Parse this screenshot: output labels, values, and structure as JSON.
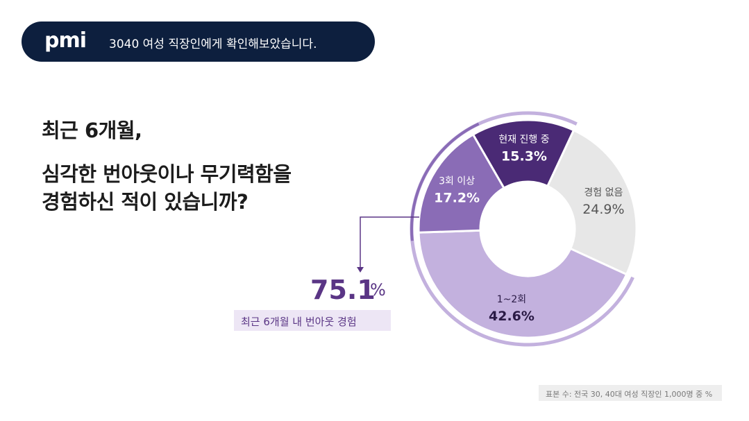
{
  "header": {
    "logo_text": "pmi",
    "subtitle": "3040 여성 직장인에게 확인해보았습니다."
  },
  "question": {
    "line1": "최근 6개월,",
    "line2": "심각한 번아웃이나 무기력함을",
    "line3": "경험하신 적이 있습니까?"
  },
  "summary": {
    "value": "75.1",
    "unit": "%",
    "caption": "최근 6개월 내 번아웃 경험"
  },
  "footnote": "표본 수: 전국 30, 40대 여성 직장인 1,000명 중 %",
  "colors": {
    "header_bg": "#0d1f3e",
    "accent": "#5a3585",
    "caption_bg": "#ede6f5"
  },
  "chart_data": {
    "type": "pie",
    "variant": "donut",
    "unit": "%",
    "slices": [
      {
        "label": "현재 진행 중",
        "value": 15.3,
        "color": "#4a2a75",
        "text_color": "#ffffff"
      },
      {
        "label": "경험 없음",
        "value": 24.9,
        "color": "#e7e7e7",
        "text_color": "#555555"
      },
      {
        "label": "1~2회",
        "value": 42.6,
        "color": "#c3b1de",
        "text_color": "#2a1a45"
      },
      {
        "label": "3회 이상",
        "value": 17.2,
        "color": "#8a6cb6",
        "text_color": "#ffffff"
      }
    ],
    "highlight": {
      "labels": [
        "현재 진행 중",
        "1~2회",
        "3회 이상"
      ],
      "total": 75.1
    }
  }
}
